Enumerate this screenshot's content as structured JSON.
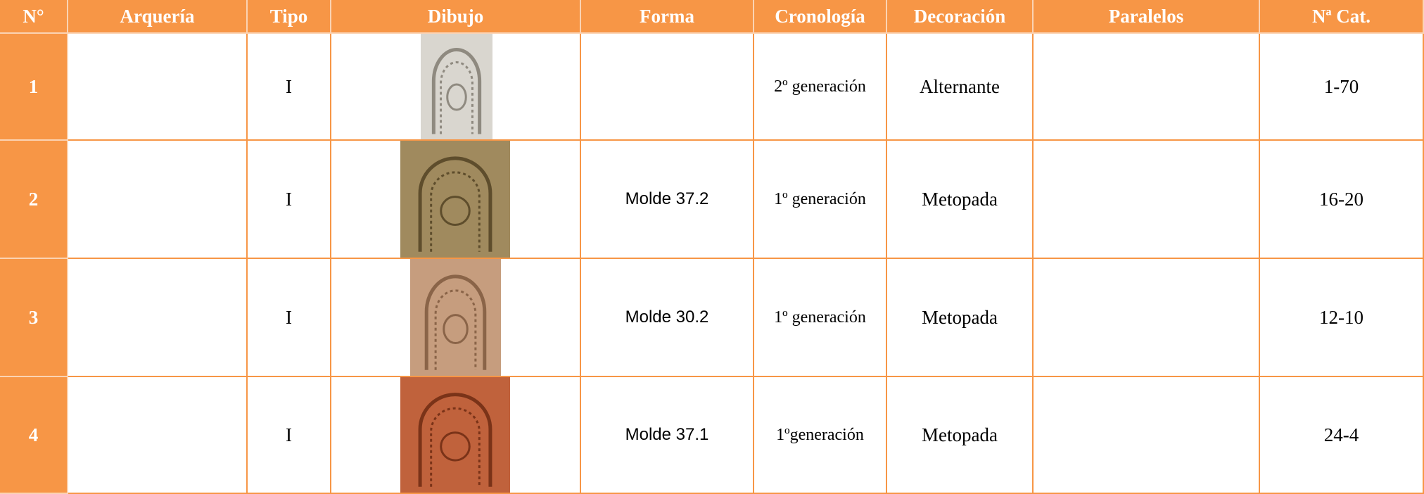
{
  "header": {
    "columns": [
      "N°",
      "Arquería",
      "Tipo",
      "Dibujo",
      "Forma",
      "Cronología",
      "Decoración",
      "Paralelos",
      "Nª Cat."
    ]
  },
  "rows": [
    {
      "number": "1",
      "tipo": "I",
      "cronologia": "2º generación",
      "decoracion": "Alternante",
      "cat": "1-70"
    },
    {
      "number": "2",
      "tipo": "I",
      "forma": "Molde 37.2",
      "cronologia": "1º generación",
      "decoracion": "Metopada",
      "cat": "16-20"
    },
    {
      "number": "3",
      "tipo": "I",
      "forma": "Molde 30.2",
      "cronologia": "1º generación",
      "decoracion": "Metopada",
      "cat": "12-10"
    },
    {
      "number": "4",
      "tipo": "I",
      "forma": "Molde 37.1",
      "cronologia": "1ºgeneración",
      "decoracion": "Metopada",
      "cat": "24-4"
    }
  ]
}
